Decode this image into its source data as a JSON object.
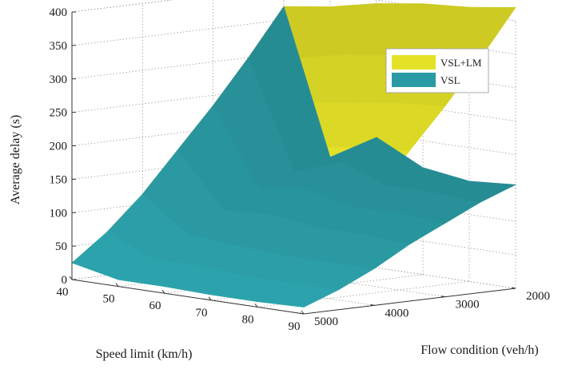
{
  "chart_data": {
    "type": "surface3d",
    "zlabel": "Average delay (s)",
    "xlabel": "Speed limit (km/h)",
    "ylabel": "Flow condition (veh/h)",
    "x_ticks": [
      "40",
      "50",
      "60",
      "70",
      "80",
      "90"
    ],
    "y_ticks": [
      "2000",
      "3000",
      "4000",
      "5000"
    ],
    "z_ticks": [
      "0",
      "50",
      "100",
      "150",
      "200",
      "250",
      "300",
      "350",
      "400"
    ],
    "xlim": [
      40,
      90
    ],
    "ylim": [
      2000,
      5000
    ],
    "zlim": [
      0,
      400
    ],
    "grid": true,
    "legend_position": "top-right",
    "speed_limits": [
      40,
      50,
      60,
      70,
      80,
      90
    ],
    "flows": [
      2000,
      2500,
      3000,
      3500,
      4000,
      4500,
      5000
    ],
    "series": [
      {
        "name": "VSL+LM",
        "color": "#e4e227",
        "values": [
          [
            370,
            300,
            235,
            175,
            115,
            65,
            25
          ],
          [
            380,
            310,
            245,
            185,
            125,
            75,
            30
          ],
          [
            395,
            325,
            260,
            200,
            140,
            85,
            35
          ],
          [
            405,
            335,
            270,
            210,
            150,
            95,
            38
          ],
          [
            410,
            345,
            280,
            220,
            160,
            100,
            40
          ],
          [
            420,
            350,
            285,
            225,
            165,
            105,
            42
          ]
        ]
      },
      {
        "name": "VSL",
        "color": "#2a9ba4",
        "values": [
          [
            370,
            300,
            235,
            175,
            115,
            65,
            25
          ],
          [
            155,
            140,
            120,
            95,
            65,
            35,
            10
          ],
          [
            195,
            165,
            130,
            100,
            60,
            35,
            10
          ],
          [
            160,
            140,
            115,
            90,
            55,
            30,
            8
          ],
          [
            150,
            140,
            115,
            90,
            55,
            30,
            8
          ],
          [
            155,
            135,
            110,
            85,
            55,
            30,
            10
          ]
        ]
      }
    ]
  }
}
